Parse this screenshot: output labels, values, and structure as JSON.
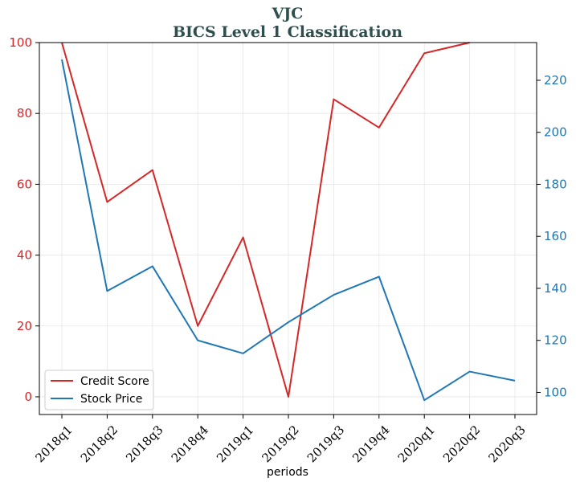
{
  "chart_data": {
    "type": "line",
    "title_line1": "VJC",
    "title_line2": "BICS Level 1 Classification",
    "xlabel": "periods",
    "categories": [
      "2018q1",
      "2018q2",
      "2018q3",
      "2018q4",
      "2019q1",
      "2019q2",
      "2019q3",
      "2019q4",
      "2020q1",
      "2020q2",
      "2020q3"
    ],
    "left_axis": {
      "ylim": [
        -5,
        100
      ],
      "ticks": [
        0,
        20,
        40,
        60,
        80,
        100
      ],
      "color": "#d62728"
    },
    "right_axis": {
      "ylim": [
        91.5,
        234.5
      ],
      "ticks": [
        100,
        120,
        140,
        160,
        180,
        200,
        220
      ],
      "color": "#1f77b4"
    },
    "series": [
      {
        "name": "Credit Score",
        "axis": "left",
        "color": "#d62728",
        "values": [
          100,
          55,
          64,
          20,
          45,
          0,
          84,
          76,
          97,
          100,
          null
        ]
      },
      {
        "name": "Stock Price",
        "axis": "right",
        "color": "#1f77b4",
        "values": [
          228,
          139,
          148.5,
          120,
          115,
          127,
          137.5,
          144.5,
          97,
          108,
          104.5
        ]
      }
    ],
    "grid": true,
    "legend_position": "lower-left"
  }
}
